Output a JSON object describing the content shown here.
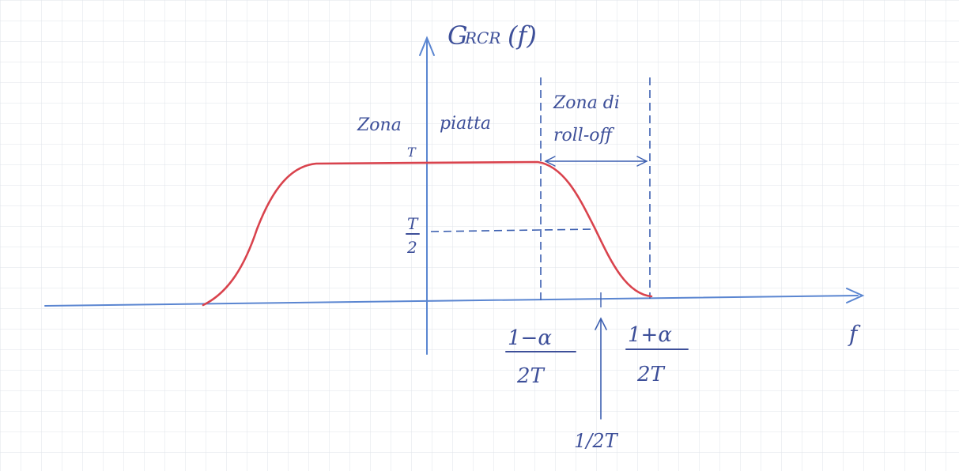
{
  "diagram": {
    "title": "G_RCR(f)",
    "title_main": "G",
    "title_sub": "RCR",
    "title_arg": "(f)",
    "x_axis_label": "f",
    "y_level_label": "T",
    "half_level_numerator": "T",
    "half_level_denominator": "2",
    "flat_zone_label_1": "Zona",
    "flat_zone_label_2": "piatta",
    "rolloff_zone_label_1": "Zona di",
    "rolloff_zone_label_2": "roll-off",
    "tick_left_numerator": "1−α",
    "tick_left_denominator": "2T",
    "tick_right_numerator": "1+α",
    "tick_right_denominator": "2T",
    "tick_mid_label": "1/2T"
  },
  "colors": {
    "paper": "#ffffff",
    "grid": "#dfe3ea",
    "axis": "#5b86d1",
    "curve": "#d9434d",
    "ink": "#3d4f99",
    "dashes": "#3c5fb0"
  }
}
